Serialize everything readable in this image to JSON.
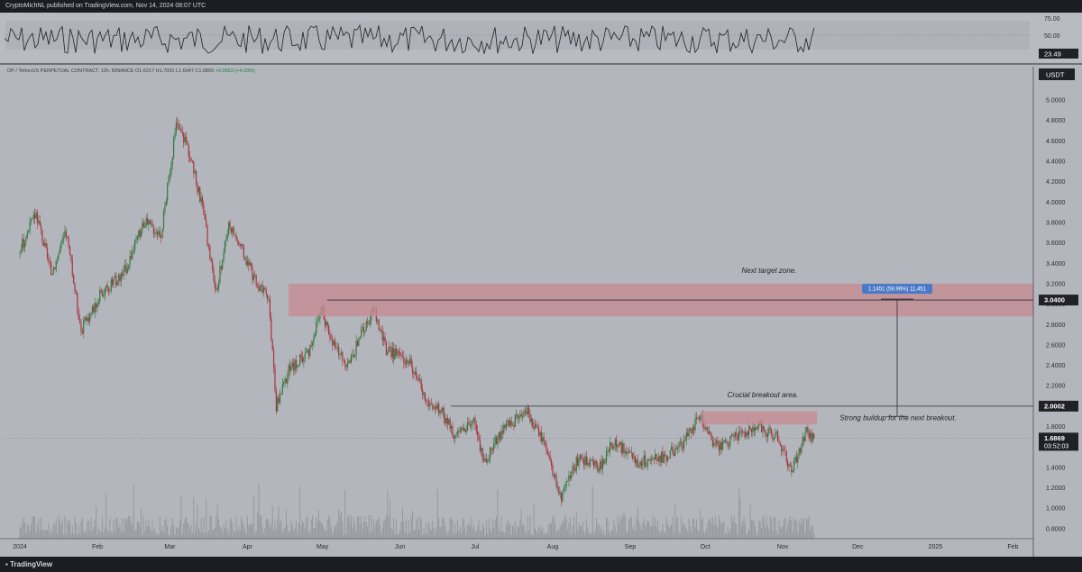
{
  "header": {
    "publish_line": "CryptoMichNL published on TradingView.com, Nov 14, 2024 08:07 UTC"
  },
  "footer": {
    "brand": "TradingView"
  },
  "colors": {
    "background": "#b4b6bd",
    "up_candle": "#2f7a3e",
    "down_candle": "#a8343c",
    "zone_fill": "#c7878f",
    "annotation_line": "#2b2d33",
    "price_tag_bg": "#1f2127"
  },
  "chart_data": {
    "type": "candlestick",
    "symbol_line": {
      "symbol": "OP / TetherUS PERPETUAL CONTRACT, 12h, BINANCE",
      "open": "O1.6217",
      "high": "H1.7091",
      "low": "L1.6047",
      "close": "C1.6869",
      "change": "+0.0653 (+4.03%)"
    },
    "currency_label": "USDT",
    "y_axis": {
      "ticks": [
        "5.0000",
        "4.8000",
        "4.6000",
        "4.4000",
        "4.2000",
        "4.0000",
        "3.8000",
        "3.6000",
        "3.4000",
        "3.2000",
        "3.0000",
        "2.8000",
        "2.6000",
        "2.4000",
        "2.2000",
        "2.0000",
        "1.8000",
        "1.6000",
        "1.4000",
        "1.2000",
        "1.0000",
        "0.8000"
      ]
    },
    "x_axis": {
      "ticks": [
        "2024",
        "Feb",
        "Mar",
        "Apr",
        "May",
        "Jun",
        "Jul",
        "Aug",
        "Sep",
        "Oct",
        "Nov",
        "Dec",
        "2025",
        "Feb"
      ]
    },
    "price_tags": [
      {
        "label": "3.0400",
        "value": 3.04
      },
      {
        "label": "2.0002",
        "value": 2.0002
      },
      {
        "label": "1.6869",
        "value": 1.6869,
        "sub": "03:52:03"
      }
    ],
    "rsi": {
      "ticks": [
        "75.00",
        "50.00"
      ],
      "current_label": "23.49"
    },
    "annotations": {
      "target_zone_text": "Next target zone.",
      "breakout_text": "Crucial breakout area.",
      "buildup_text": "Strong buildup for the next breakout.",
      "measure_label": "1.1451 (59.96%) 11,451"
    },
    "price_path": [
      {
        "d": "2024-01-01",
        "p": 3.5
      },
      {
        "d": "2024-01-08",
        "p": 3.9
      },
      {
        "d": "2024-01-14",
        "p": 3.3
      },
      {
        "d": "2024-01-20",
        "p": 3.7
      },
      {
        "d": "2024-01-26",
        "p": 2.75
      },
      {
        "d": "2024-02-03",
        "p": 3.1
      },
      {
        "d": "2024-02-12",
        "p": 3.3
      },
      {
        "d": "2024-02-20",
        "p": 3.8
      },
      {
        "d": "2024-02-27",
        "p": 3.7
      },
      {
        "d": "2024-03-04",
        "p": 4.75
      },
      {
        "d": "2024-03-08",
        "p": 4.6
      },
      {
        "d": "2024-03-14",
        "p": 4.0
      },
      {
        "d": "2024-03-20",
        "p": 3.1
      },
      {
        "d": "2024-03-25",
        "p": 3.8
      },
      {
        "d": "2024-03-30",
        "p": 3.55
      },
      {
        "d": "2024-04-05",
        "p": 3.2
      },
      {
        "d": "2024-04-10",
        "p": 3.05
      },
      {
        "d": "2024-04-13",
        "p": 2.0
      },
      {
        "d": "2024-04-18",
        "p": 2.35
      },
      {
        "d": "2024-04-26",
        "p": 2.55
      },
      {
        "d": "2024-05-01",
        "p": 2.95
      },
      {
        "d": "2024-05-06",
        "p": 2.6
      },
      {
        "d": "2024-05-12",
        "p": 2.4
      },
      {
        "d": "2024-05-17",
        "p": 2.7
      },
      {
        "d": "2024-05-22",
        "p": 2.95
      },
      {
        "d": "2024-05-27",
        "p": 2.55
      },
      {
        "d": "2024-06-05",
        "p": 2.45
      },
      {
        "d": "2024-06-12",
        "p": 2.05
      },
      {
        "d": "2024-06-18",
        "p": 1.95
      },
      {
        "d": "2024-06-24",
        "p": 1.7
      },
      {
        "d": "2024-07-01",
        "p": 1.85
      },
      {
        "d": "2024-07-05",
        "p": 1.45
      },
      {
        "d": "2024-07-12",
        "p": 1.75
      },
      {
        "d": "2024-07-22",
        "p": 1.95
      },
      {
        "d": "2024-07-28",
        "p": 1.7
      },
      {
        "d": "2024-08-05",
        "p": 1.1
      },
      {
        "d": "2024-08-12",
        "p": 1.5
      },
      {
        "d": "2024-08-20",
        "p": 1.4
      },
      {
        "d": "2024-08-26",
        "p": 1.65
      },
      {
        "d": "2024-09-05",
        "p": 1.45
      },
      {
        "d": "2024-09-15",
        "p": 1.5
      },
      {
        "d": "2024-09-22",
        "p": 1.6
      },
      {
        "d": "2024-09-29",
        "p": 1.9
      },
      {
        "d": "2024-10-05",
        "p": 1.6
      },
      {
        "d": "2024-10-15",
        "p": 1.7
      },
      {
        "d": "2024-10-22",
        "p": 1.8
      },
      {
        "d": "2024-10-30",
        "p": 1.7
      },
      {
        "d": "2024-11-05",
        "p": 1.35
      },
      {
        "d": "2024-11-11",
        "p": 1.75
      },
      {
        "d": "2024-11-14",
        "p": 1.6869
      }
    ]
  }
}
